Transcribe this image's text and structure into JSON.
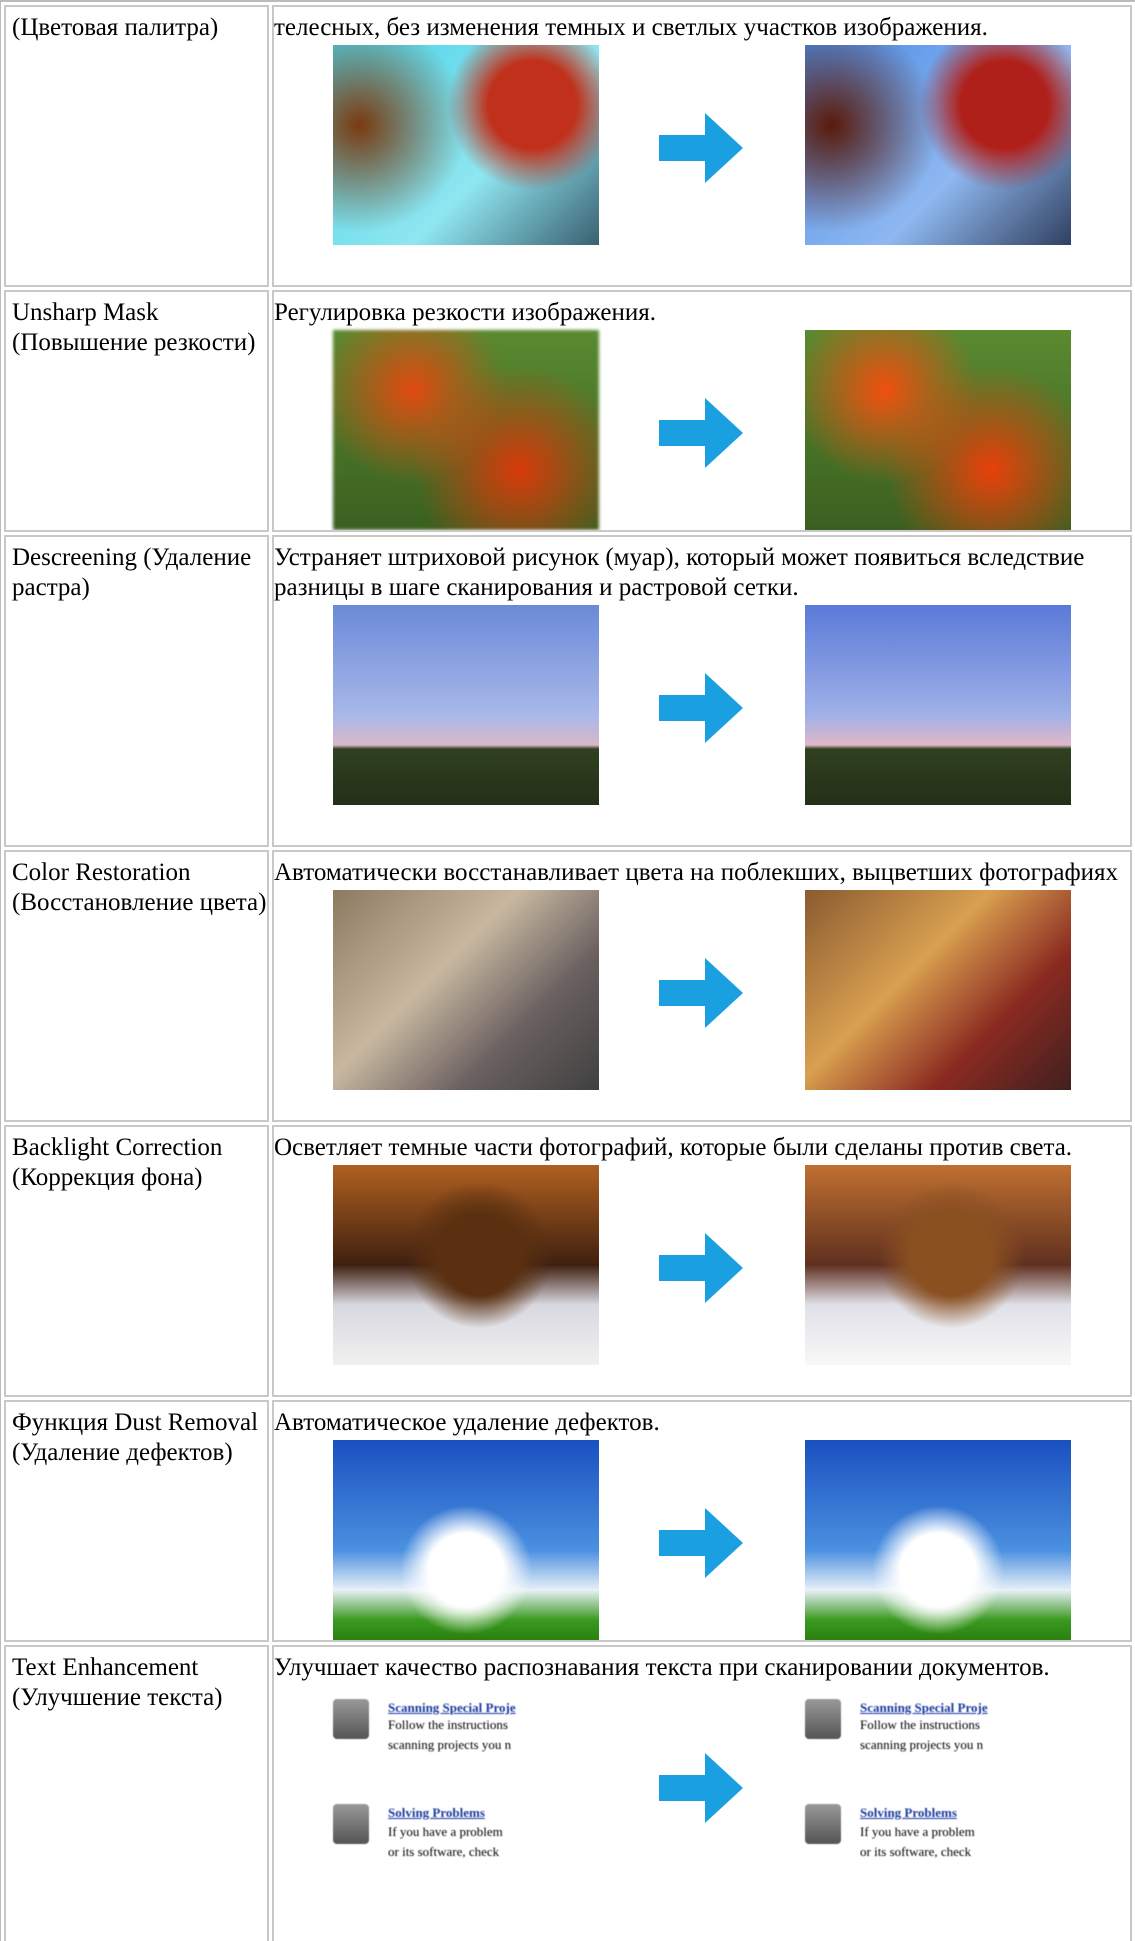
{
  "table": {
    "rows": [
      {
        "label": "(Цветовая палитра)",
        "description": "телесных, без изменения темных и светлых участков изображения."
      },
      {
        "label": "Unsharp Mask (Повышение резкости)",
        "description": "Регулировка резкости изображения."
      },
      {
        "label": "Descreening (Удаление растра)",
        "description": "Устраняет штриховой рисунок (муар), который может появиться вследствие разницы в шаге сканирования и растровой сетки."
      },
      {
        "label": "Color Restoration (Восстановление цвета)",
        "description": "Автоматически восстанавливает цвета на поблекших, выцветших фотографиях"
      },
      {
        "label": "Backlight Correction (Коррекция фона)",
        "description": "Осветляет темные части фотографий, которые были сделаны против света."
      },
      {
        "label": "Функция Dust Removal (Удаление дефектов)",
        "description": "Автоматическое удаление дефектов."
      },
      {
        "label": "Text Enhancement (Улучшение текста)",
        "description": "Улучшает качество распознавания текста при сканировании документов."
      }
    ]
  },
  "sample_text": {
    "heading1": "Scanning Special Proje",
    "line1": "Follow the instructions",
    "line2": "scanning projects you n",
    "heading2": "Solving Problems",
    "line3": "If you have a problem",
    "line4": "or its software, check"
  }
}
